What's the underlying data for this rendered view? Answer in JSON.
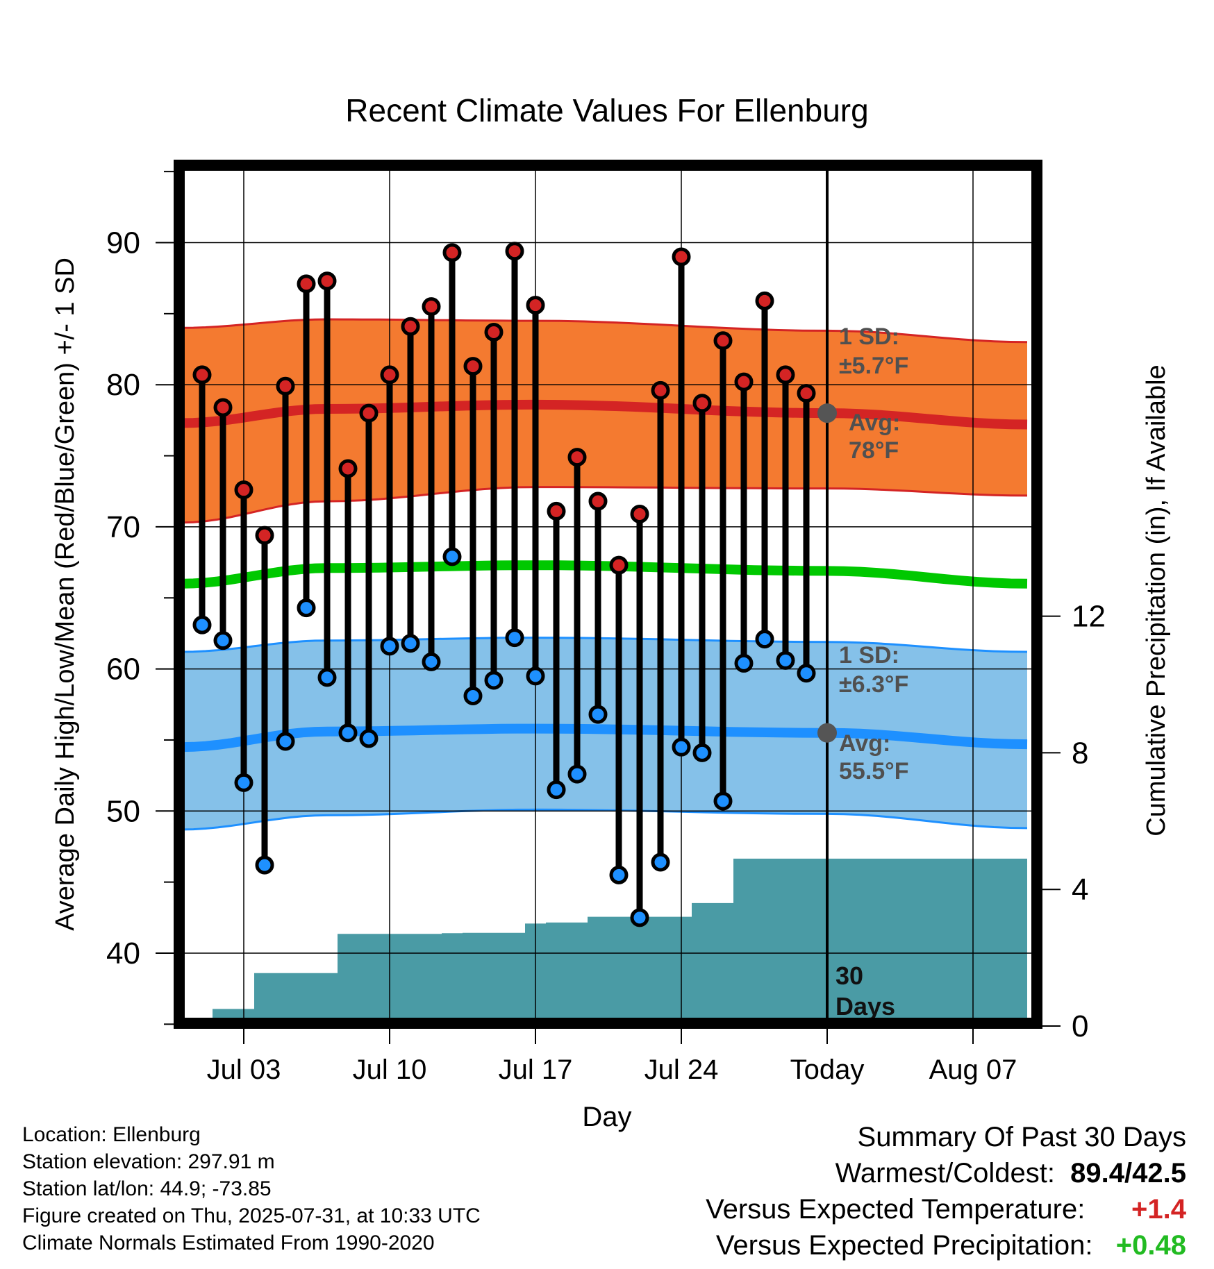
{
  "chart_data": {
    "type": "line",
    "title": "Recent Climate Values For Ellenburg",
    "xlabel": "Day",
    "ylabel": "Average Daily High/Low/Mean (Red/Blue/Green) +/- 1 SD",
    "y2label": "Cumulative Precipitation (in), If Available",
    "x_ticks": [
      "Jul 03",
      "Jul 10",
      "Jul 17",
      "Jul 24",
      "Today",
      "Aug 07"
    ],
    "x_tick_offsets": [
      -28,
      -21,
      -14,
      -7,
      0,
      7
    ],
    "x_range_offsets": [
      -31,
      9.6
    ],
    "ylim": [
      35,
      95
    ],
    "y_ticks": [
      40,
      50,
      60,
      70,
      80,
      90
    ],
    "y2lim": [
      0,
      24
    ],
    "y2_ticks": [
      0,
      4,
      8,
      12
    ],
    "grid": true,
    "days_offsets": [
      -30,
      -29,
      -28,
      -27,
      -26,
      -25,
      -24,
      -23,
      -22,
      -21,
      -20,
      -19,
      -18,
      -17,
      -16,
      -15,
      -14,
      -13,
      -12,
      -11,
      -10,
      -9,
      -8,
      -7,
      -6,
      -5,
      -4,
      -3,
      -2,
      -1
    ],
    "observed_high": [
      80.7,
      78.4,
      72.6,
      69.4,
      79.9,
      87.1,
      87.3,
      74.1,
      78.0,
      80.7,
      84.1,
      85.5,
      89.3,
      81.3,
      83.7,
      89.4,
      85.6,
      71.1,
      74.9,
      71.8,
      67.3,
      70.9,
      79.6,
      89.0,
      78.7,
      83.1,
      80.2,
      85.9,
      80.7,
      79.4
    ],
    "observed_low": [
      63.1,
      62.0,
      52.0,
      46.2,
      54.9,
      64.3,
      59.4,
      55.5,
      55.1,
      61.6,
      61.8,
      60.5,
      67.9,
      58.1,
      59.2,
      62.2,
      59.5,
      51.5,
      52.6,
      56.8,
      45.5,
      42.5,
      46.4,
      54.5,
      54.1,
      50.7,
      60.4,
      62.1,
      60.6,
      59.7
    ],
    "normal_high_offsets": [
      -31,
      -24,
      -14,
      0,
      9.6
    ],
    "normal_high": [
      77.3,
      78.3,
      78.6,
      78.0,
      77.2
    ],
    "high_sd_upper": [
      84.0,
      84.6,
      84.5,
      83.8,
      83.0
    ],
    "high_sd_lower": [
      70.3,
      71.8,
      72.8,
      72.7,
      72.2
    ],
    "normal_mean": [
      66.0,
      67.1,
      67.3,
      66.9,
      66.0
    ],
    "normal_low": [
      54.5,
      55.6,
      55.8,
      55.5,
      54.7
    ],
    "low_sd_upper": [
      61.2,
      62.0,
      62.2,
      61.9,
      61.2
    ],
    "low_sd_lower": [
      48.7,
      49.7,
      50.1,
      49.8,
      48.8
    ],
    "precip_cumulative": [
      0.05,
      0.5,
      0.5,
      1.55,
      1.55,
      1.55,
      1.55,
      2.7,
      2.7,
      2.7,
      2.7,
      2.7,
      2.72,
      2.73,
      2.73,
      2.73,
      3.0,
      3.03,
      3.03,
      3.2,
      3.2,
      3.2,
      3.2,
      3.2,
      3.6,
      3.6,
      4.9,
      4.9,
      4.9,
      4.9
    ],
    "annotations": {
      "high_sd_label": "1 SD:",
      "high_sd_value": "±5.7°F",
      "high_avg_label": "Avg:",
      "high_avg_value": "78°F",
      "low_sd_label": "1 SD:",
      "low_sd_value": "±6.3°F",
      "low_avg_label": "Avg:",
      "low_avg_value": "55.5°F",
      "window_line1": "30",
      "window_line2": "Days"
    },
    "colors": {
      "high_band": "#f47a30",
      "high_line": "#d42424",
      "mean_line": "#00c800",
      "low_band": "#85c1e9",
      "low_line": "#1e90ff",
      "precip_fill": "#4a9ba5",
      "high_dot": "#d42424",
      "low_dot": "#1e90ff",
      "annotation": "#505050"
    }
  },
  "info": {
    "location": "Location: Ellenburg",
    "elevation": "Station elevation: 297.91 m",
    "latlon": "Station lat/lon: 44.9; -73.85",
    "created": "Figure created on Thu, 2025-07-31, at 10:33 UTC",
    "normals": "Climate Normals Estimated From 1990-2020"
  },
  "summary": {
    "title": "Summary Of Past 30 Days",
    "warm_cold_label": "Warmest/Coldest:",
    "warm_cold_value": "89.4/42.5",
    "temp_label": "Versus Expected Temperature:",
    "temp_value": "+1.4",
    "temp_color": "#d42424",
    "precip_label": "Versus Expected Precipitation:",
    "precip_value": "+0.48",
    "precip_color": "#22bb22"
  }
}
